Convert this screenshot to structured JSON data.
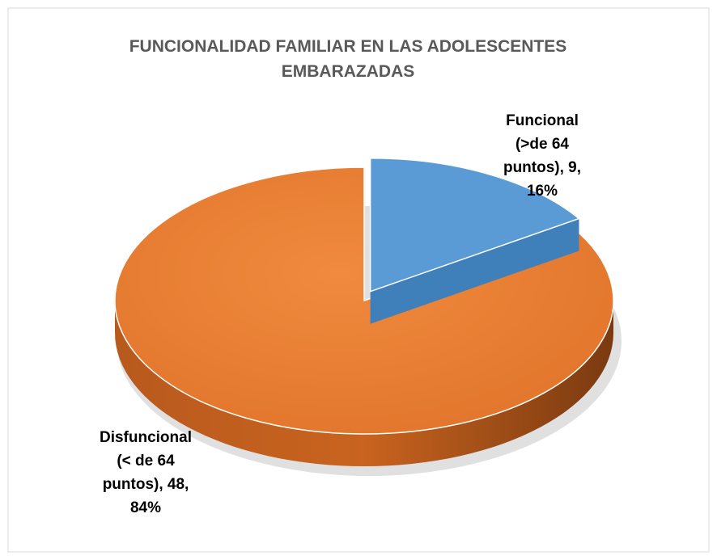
{
  "chart_data": {
    "type": "pie3d",
    "title": "FUNCIONALIDAD FAMILIAR EN LAS ADOLESCENTES EMBARAZADAS",
    "categories": [
      "Funcional (>de 64 puntos)",
      "Disfuncional (< de 64 puntos)"
    ],
    "values": [
      9,
      48
    ],
    "value_labels": [
      "Funcional (>de 64 puntos), 9, 16%",
      "Disfuncional (< de 64 puntos), 48, 84%"
    ],
    "colors": [
      "#5b9bd5",
      "#ed7d31"
    ]
  }
}
